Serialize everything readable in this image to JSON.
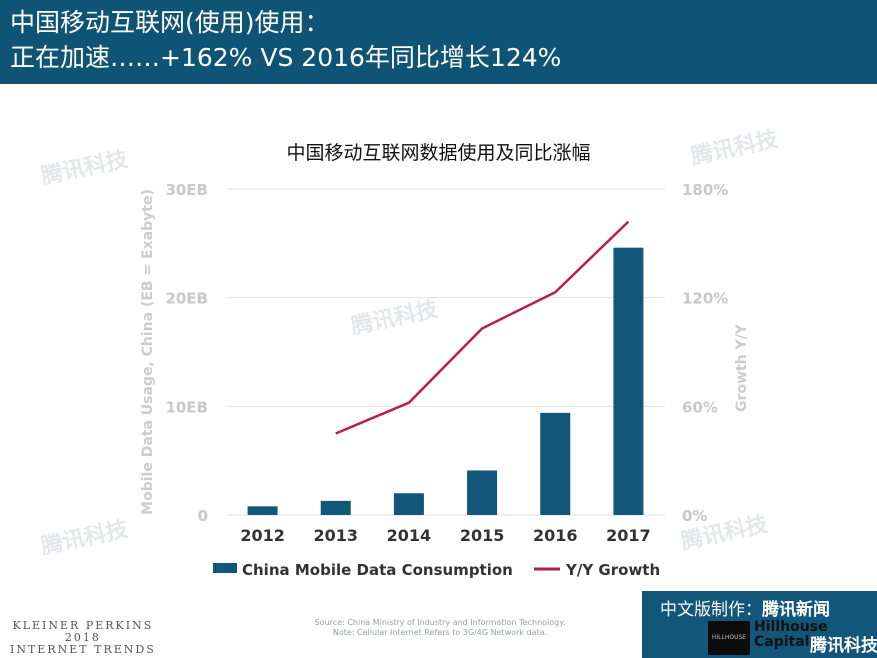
{
  "header": {
    "title_line1": "中国移动互联网(使用)使用：",
    "title_line2": "正在加速……+162% VS 2016年同比增长124%"
  },
  "watermark": "腾讯科技",
  "chart_data": {
    "type": "bar",
    "title": "中国移动互联网数据使用及同比涨幅",
    "categories": [
      "2012",
      "2013",
      "2014",
      "2015",
      "2016",
      "2017"
    ],
    "series": [
      {
        "name": "China Mobile Data Consumption",
        "type": "bar",
        "axis": "left",
        "color": "#12567a",
        "values": [
          0.8,
          1.3,
          2.0,
          4.1,
          9.4,
          24.6
        ]
      },
      {
        "name": "Y/Y Growth",
        "type": "line",
        "axis": "right",
        "color": "#b5204a",
        "values": [
          null,
          45,
          62,
          103,
          123,
          162
        ]
      }
    ],
    "ylabel": "Mobile Data Usage, China (EB = Exabyte)",
    "ylabel_right": "Growth Y/Y",
    "ylim": [
      0,
      30
    ],
    "ylim_right": [
      0,
      180
    ],
    "yticks": [
      "0",
      "10EB",
      "20EB",
      "30EB"
    ],
    "yticks_right": [
      "0%",
      "60%",
      "120%",
      "180%"
    ],
    "grid": true,
    "legend_position": "bottom"
  },
  "footer": {
    "kp_line1": "KLEINER PERKINS",
    "kp_line2": "2018",
    "kp_line3": "INTERNET TRENDS",
    "source_line1": "Source: China Ministry of Industry and Information Technology.",
    "source_line2": "Note: Cellular Internet Refers to 3G/4G Network data.",
    "badge_prefix": "中文版制作：",
    "badge_brand": "腾讯新闻",
    "hillhouse_line1": "Hillhouse",
    "hillhouse_line2": "Capital",
    "badge_brand2": "腾讯科技"
  }
}
